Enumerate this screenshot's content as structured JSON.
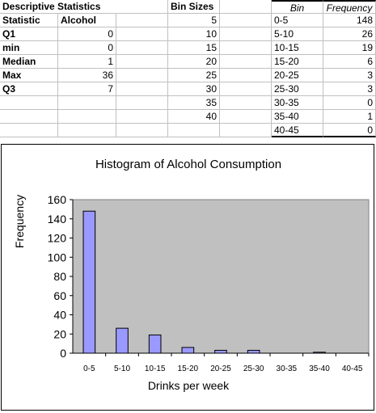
{
  "stats_table": {
    "title": "Descriptive Statistics",
    "col1_header": "Statistic",
    "col2_header": "Alcohol",
    "rows": [
      {
        "label": "Q1",
        "value": "0"
      },
      {
        "label": "min",
        "value": "0"
      },
      {
        "label": "Median",
        "value": "1"
      },
      {
        "label": "Max",
        "value": "36"
      },
      {
        "label": "Q3",
        "value": "7"
      }
    ]
  },
  "bin_sizes": {
    "header": "Bin Sizes",
    "values": [
      "5",
      "10",
      "15",
      "20",
      "25",
      "30",
      "35",
      "40"
    ]
  },
  "freq_table": {
    "bin_header": "Bin",
    "freq_header": "Frequency",
    "rows": [
      {
        "bin": "0-5",
        "freq": "148"
      },
      {
        "bin": "5-10",
        "freq": "26"
      },
      {
        "bin": "10-15",
        "freq": "19"
      },
      {
        "bin": "15-20",
        "freq": "6"
      },
      {
        "bin": "20-25",
        "freq": "3"
      },
      {
        "bin": "25-30",
        "freq": "3"
      },
      {
        "bin": "30-35",
        "freq": "0"
      },
      {
        "bin": "35-40",
        "freq": "1"
      },
      {
        "bin": "40-45",
        "freq": "0"
      }
    ]
  },
  "colors": {
    "plot_bg": "#c0c0c0",
    "bar_fill": "#9999ff",
    "bar_stroke": "#000000"
  },
  "chart_data": {
    "type": "bar",
    "title": "Histogram of Alcohol Consumption",
    "xlabel": "Drinks per week",
    "ylabel": "Frequency",
    "categories": [
      "0-5",
      "5-10",
      "10-15",
      "15-20",
      "20-25",
      "25-30",
      "30-35",
      "35-40",
      "40-45"
    ],
    "values": [
      148,
      26,
      19,
      6,
      3,
      3,
      0,
      1,
      0
    ],
    "ylim": [
      0,
      160
    ],
    "yticks": [
      0,
      20,
      40,
      60,
      80,
      100,
      120,
      140,
      160
    ],
    "grid": false,
    "legend": "none"
  }
}
